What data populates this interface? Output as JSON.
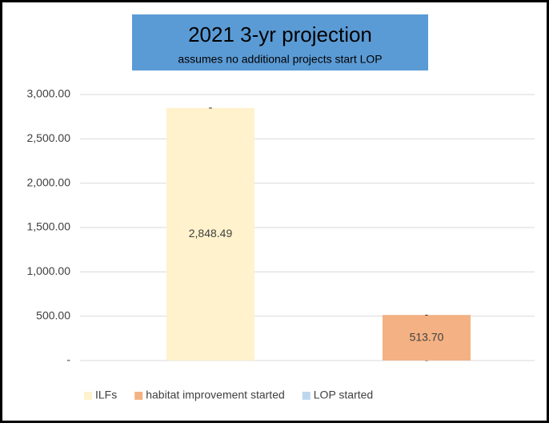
{
  "chart_data": {
    "type": "stacked_bar",
    "title": "2021 3-yr projection",
    "subtitle": "assumes no additional projects start LOP",
    "categories": [
      null,
      null
    ],
    "series": [
      {
        "name": "ILFs",
        "color": "#fff2cc",
        "values": [
          2848.49,
          0
        ],
        "value_labels": [
          "2,848.49",
          "-"
        ]
      },
      {
        "name": "habitat improvement started",
        "color": "#f4b183",
        "values": [
          0,
          513.7
        ],
        "value_labels": [
          "-",
          "513.70"
        ]
      },
      {
        "name": "LOP started",
        "color": "#bdd7ee",
        "values": [
          0,
          0
        ],
        "value_labels": [
          "-",
          "-"
        ]
      }
    ],
    "ylim": [
      0,
      3000
    ],
    "yticks": [
      {
        "value": 0,
        "label": "-"
      },
      {
        "value": 500,
        "label": "500.00"
      },
      {
        "value": 1000,
        "label": "1,000.00"
      },
      {
        "value": 1500,
        "label": "1,500.00"
      },
      {
        "value": 2000,
        "label": "2,000.00"
      },
      {
        "value": 2500,
        "label": "2,500.00"
      },
      {
        "value": 3000,
        "label": "3,000.00"
      }
    ],
    "grid": true,
    "legend": "bottom"
  }
}
